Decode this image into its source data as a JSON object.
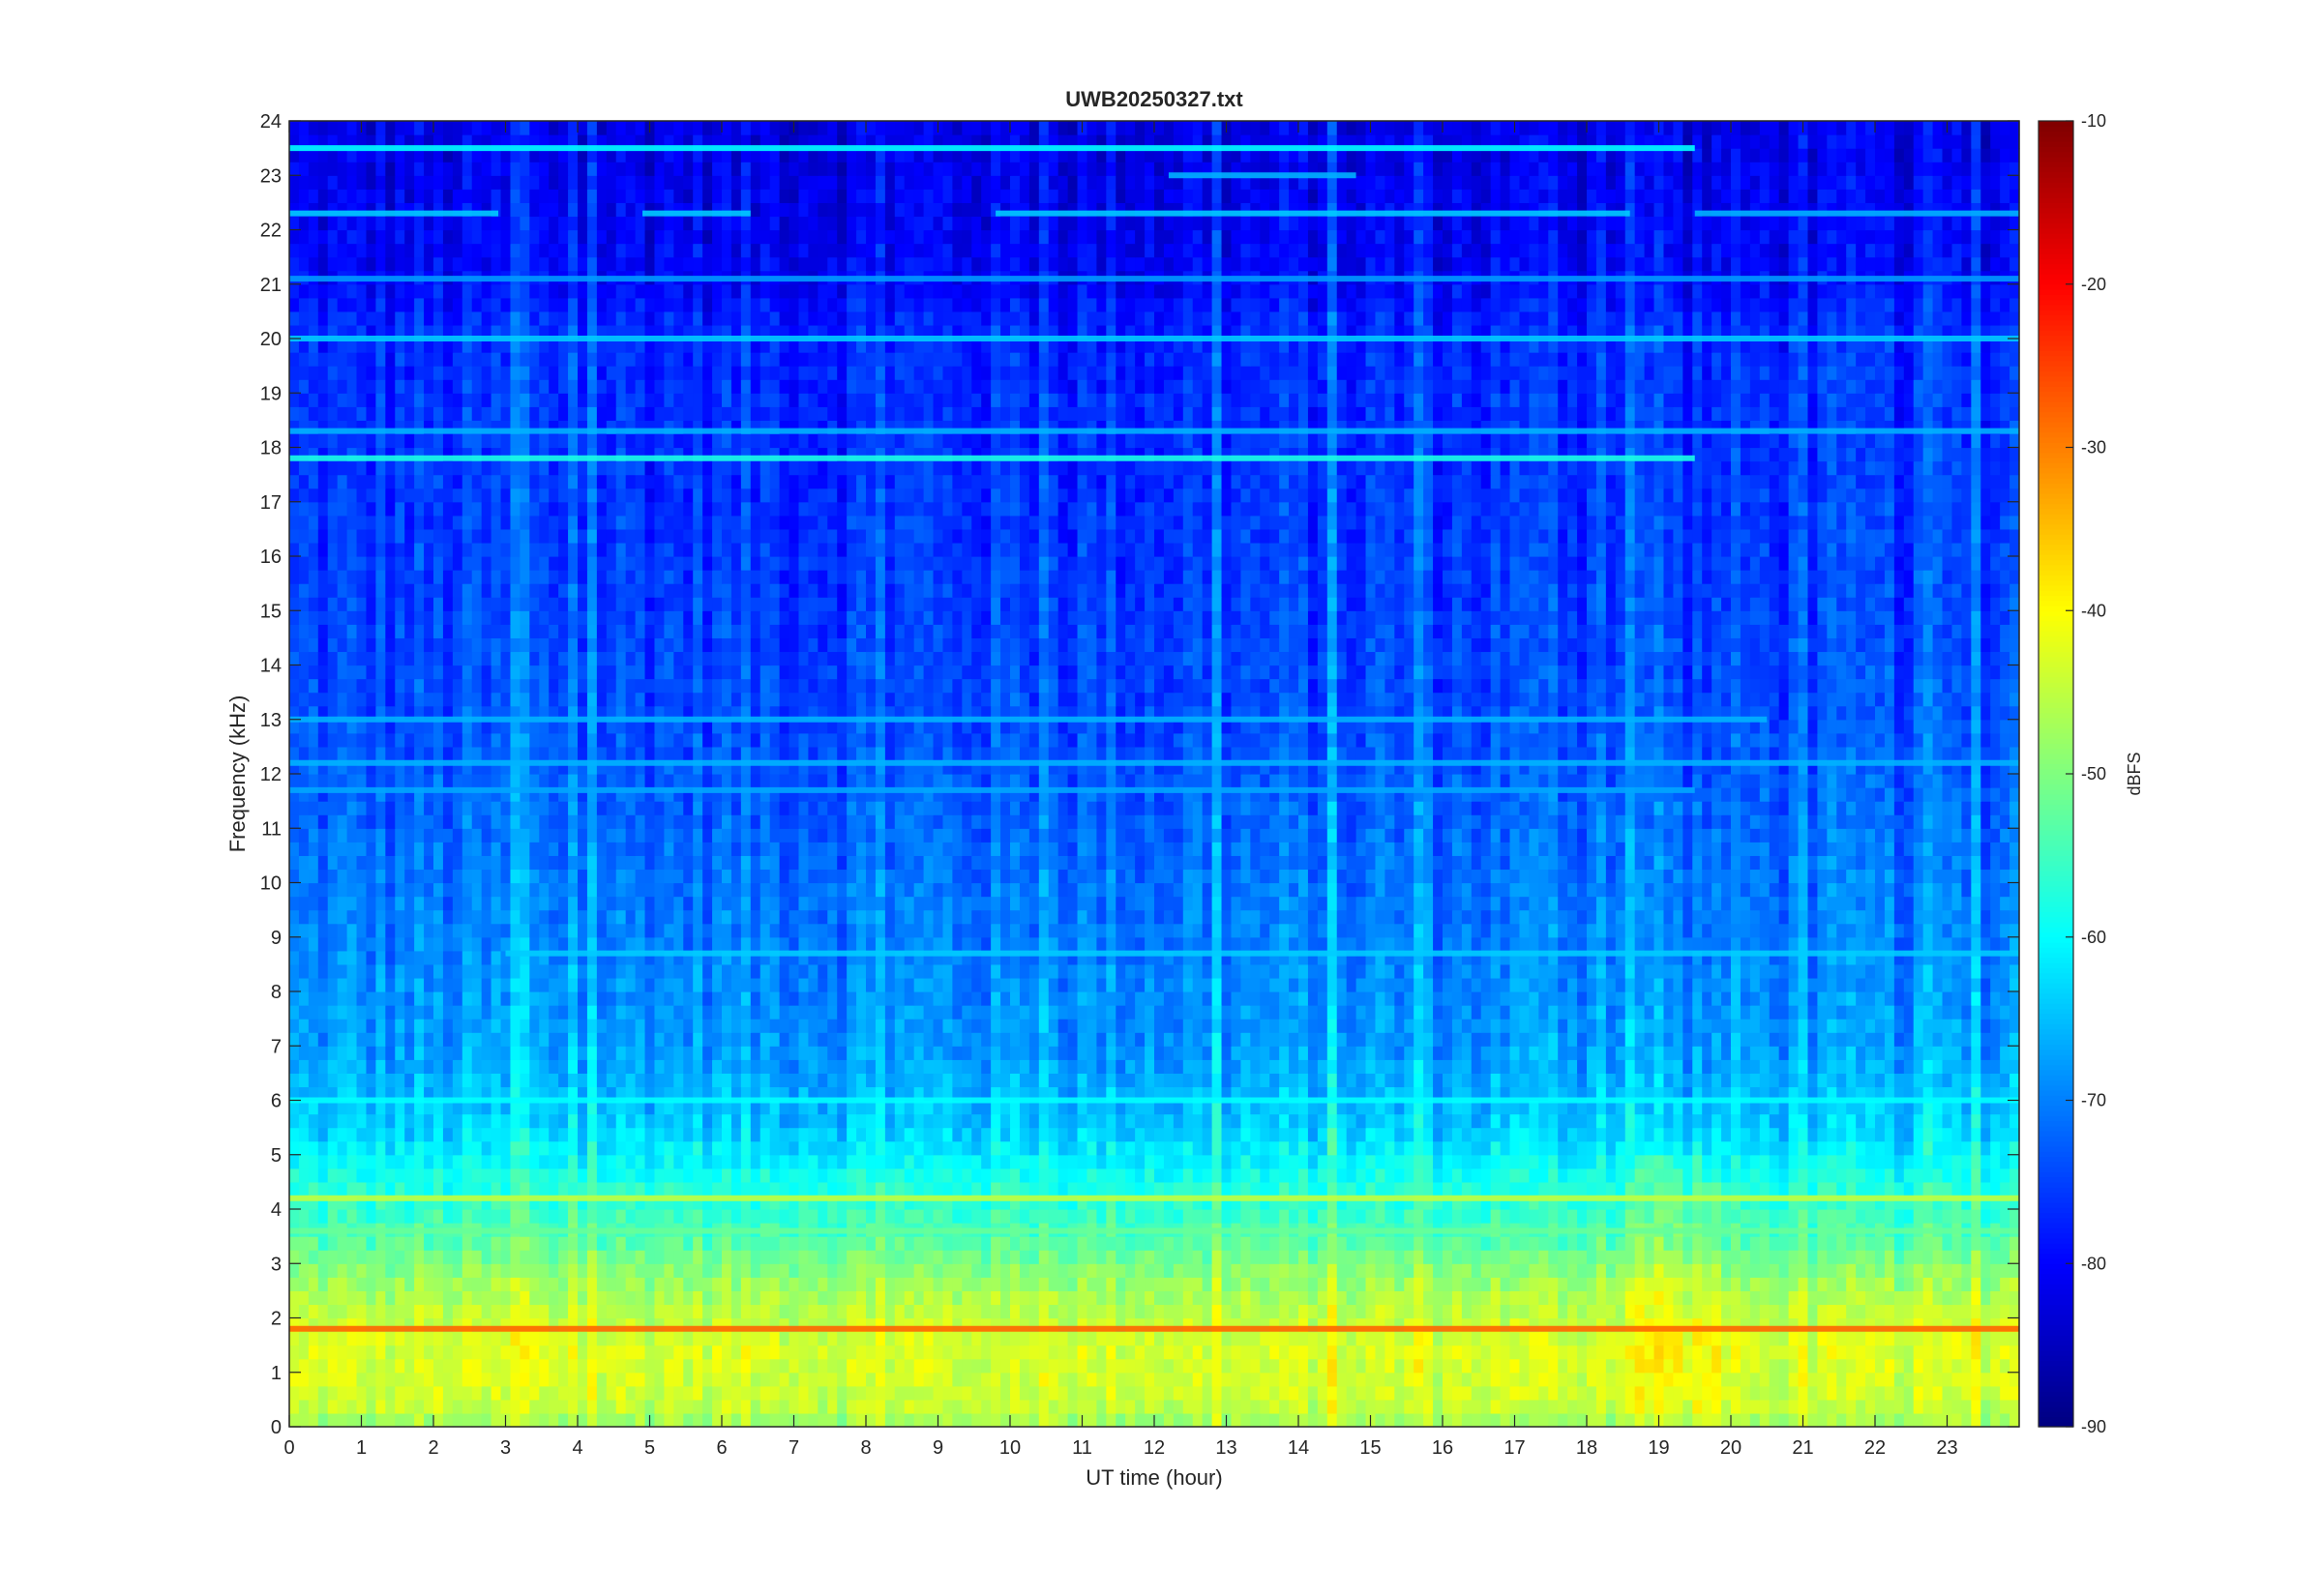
{
  "chart_data": {
    "type": "heatmap",
    "title": "UWB20250327.txt",
    "xlabel": "UT time (hour)",
    "ylabel": "Frequency (kHz)",
    "xlim": [
      0,
      24
    ],
    "ylim": [
      0,
      24
    ],
    "x_ticks": [
      0,
      1,
      2,
      3,
      4,
      5,
      6,
      7,
      8,
      9,
      10,
      11,
      12,
      13,
      14,
      15,
      16,
      17,
      18,
      19,
      20,
      21,
      22,
      23
    ],
    "y_ticks": [
      0,
      1,
      2,
      3,
      4,
      5,
      6,
      7,
      8,
      9,
      10,
      11,
      12,
      13,
      14,
      15,
      16,
      17,
      18,
      19,
      20,
      21,
      22,
      23,
      24
    ],
    "colorbar": {
      "label": "dBFS",
      "clim": [
        -90,
        -10
      ],
      "ticks": [
        -90,
        -80,
        -70,
        -60,
        -50,
        -40,
        -30,
        -20,
        -10
      ],
      "colormap": "jet"
    },
    "grid": false,
    "background_profile": {
      "description_points_freq_khz": [
        0,
        0.5,
        1.5,
        2.5,
        3.5,
        4.5,
        5.5,
        7,
        9,
        11,
        13,
        17,
        20.2,
        21,
        24
      ],
      "level_dbfs": [
        -48,
        -44,
        -43,
        -47,
        -54,
        -58,
        -64,
        -68,
        -70,
        -72,
        -74,
        -76,
        -77,
        -80,
        -82
      ]
    },
    "bands": [
      {
        "freq_khz": 1.8,
        "level_dbfs": -28,
        "t_start": 0,
        "t_end": 24
      },
      {
        "freq_khz": 4.2,
        "level_dbfs": -45,
        "t_start": 0,
        "t_end": 24
      },
      {
        "freq_khz": 3.6,
        "level_dbfs": -52,
        "t_start": 0,
        "t_end": 24
      },
      {
        "freq_khz": 6.0,
        "level_dbfs": -60,
        "t_start": 0,
        "t_end": 24
      },
      {
        "freq_khz": 12.2,
        "level_dbfs": -66,
        "t_start": 0,
        "t_end": 24
      },
      {
        "freq_khz": 11.7,
        "level_dbfs": -67,
        "t_start": 0,
        "t_end": 19.5
      },
      {
        "freq_khz": 13.0,
        "level_dbfs": -66,
        "t_start": 0,
        "t_end": 20.5
      },
      {
        "freq_khz": 17.8,
        "level_dbfs": -58,
        "t_start": 0,
        "t_end": 19.5
      },
      {
        "freq_khz": 18.3,
        "level_dbfs": -66,
        "t_start": 0,
        "t_end": 24
      },
      {
        "freq_khz": 20.0,
        "level_dbfs": -64,
        "t_start": 0,
        "t_end": 24
      },
      {
        "freq_khz": 21.1,
        "level_dbfs": -68,
        "t_start": 0,
        "t_end": 24
      },
      {
        "freq_khz": 22.3,
        "level_dbfs": -64,
        "t_start": 0,
        "t_end": 2.9
      },
      {
        "freq_khz": 22.3,
        "level_dbfs": -64,
        "t_start": 4.9,
        "t_end": 6.4
      },
      {
        "freq_khz": 22.3,
        "level_dbfs": -64,
        "t_start": 9.8,
        "t_end": 18.6
      },
      {
        "freq_khz": 22.3,
        "level_dbfs": -66,
        "t_start": 19.5,
        "t_end": 24
      },
      {
        "freq_khz": 23.0,
        "level_dbfs": -66,
        "t_start": 12.2,
        "t_end": 14.8
      },
      {
        "freq_khz": 23.5,
        "level_dbfs": -60,
        "t_start": 0,
        "t_end": 19.5
      },
      {
        "freq_khz": 8.7,
        "level_dbfs": -64,
        "t_start": 3,
        "t_end": 24
      }
    ]
  }
}
